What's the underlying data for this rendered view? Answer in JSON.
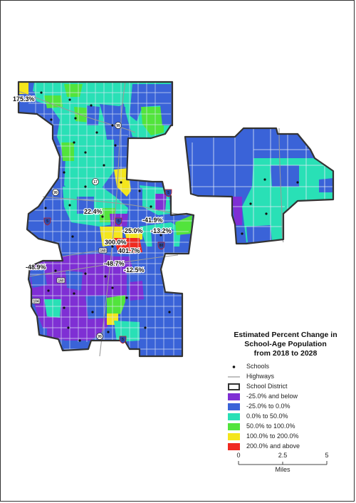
{
  "map": {
    "colors": {
      "below_neg25": "#7f2fd4",
      "neg25_to_0": "#3a63d8",
      "zero_to_50": "#29e0b6",
      "fifty_to_100": "#52e43c",
      "hundred_to_200": "#f4e61c",
      "above_200": "#f02a20",
      "district_outline": "#333333",
      "highway": "#9a9a9a",
      "tract_line": "#dfe9f5"
    },
    "labels": {
      "l1": "175.3%",
      "l2": "22.4%",
      "l3": "-41.9%",
      "l4": "-25.0%",
      "l5": "-13.2%",
      "l6": "300.0%",
      "l7": "401.7%",
      "l8": "-48.9%",
      "l9": "-48.7%",
      "l10": "-12.5%"
    },
    "shields": {
      "s1": "99",
      "s2": "17",
      "s3": "5",
      "s4": "99",
      "s5": "5",
      "s6": "5",
      "s7": "80",
      "s8": "160",
      "s9": "160",
      "s10": "104",
      "s11": "99",
      "s12": "5"
    }
  },
  "legend": {
    "title_line1": "Estimated Percent Change in",
    "title_line2": "School-Age Population",
    "title_line3": "from 2018 to 2028",
    "items": [
      {
        "label": "Schools"
      },
      {
        "label": "Highways"
      },
      {
        "label": "School District"
      },
      {
        "label": "-25.0% and below"
      },
      {
        "label": "-25.0% to 0.0%"
      },
      {
        "label": "0.0% to 50.0%"
      },
      {
        "label": "50.0% to 100.0%"
      },
      {
        "label": "100.0% to 200.0%"
      },
      {
        "label": "200.0% and above"
      }
    ]
  },
  "scale_bar": {
    "ticks": [
      "0",
      "2.5",
      "5"
    ],
    "unit": "Miles"
  }
}
